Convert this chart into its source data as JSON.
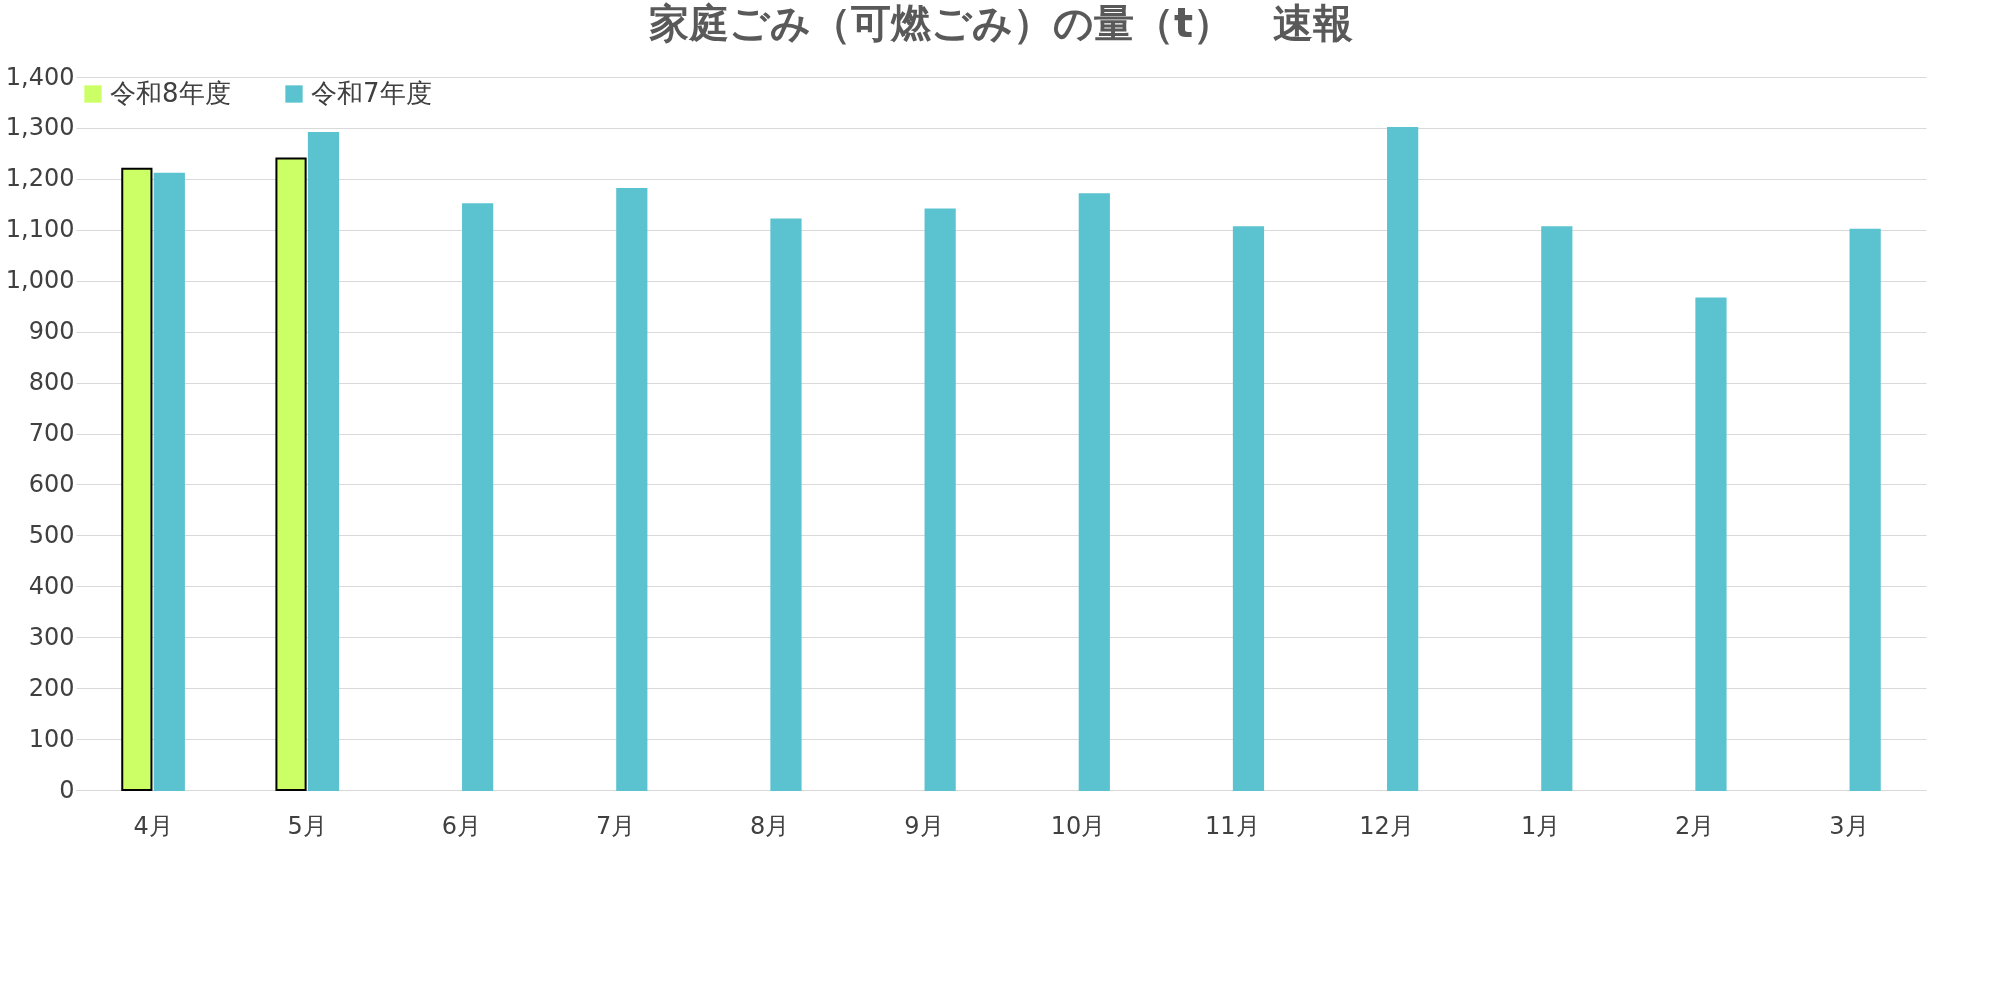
{
  "chart_data": {
    "type": "bar",
    "title": "家庭ごみ（可燃ごみ）の量（t）　速報",
    "categories": [
      "4月",
      "5月",
      "6月",
      "7月",
      "8月",
      "9月",
      "10月",
      "11月",
      "12月",
      "1月",
      "2月",
      "3月"
    ],
    "series": [
      {
        "name": "令和8年度",
        "color": "#ccff66",
        "values": [
          1220,
          1240,
          null,
          null,
          null,
          null,
          null,
          null,
          null,
          null,
          null,
          null
        ]
      },
      {
        "name": "令和7年度",
        "color": "#5bc3cf",
        "values": [
          1210,
          1290,
          1150,
          1180,
          1120,
          1140,
          1170,
          1105,
          1300,
          1105,
          965,
          1100
        ]
      }
    ],
    "ylim": [
      0,
      1400
    ],
    "yticks": [
      0,
      100,
      200,
      300,
      400,
      500,
      600,
      700,
      800,
      900,
      {
        "value": 1000,
        "label": "1,000"
      },
      {
        "value": 1100,
        "label": "1,100"
      },
      {
        "value": 1200,
        "label": "1,200"
      },
      {
        "value": 1300,
        "label": "1,300"
      },
      {
        "value": 1400,
        "label": "1,400"
      }
    ],
    "grid": "y",
    "legend": "top left"
  }
}
